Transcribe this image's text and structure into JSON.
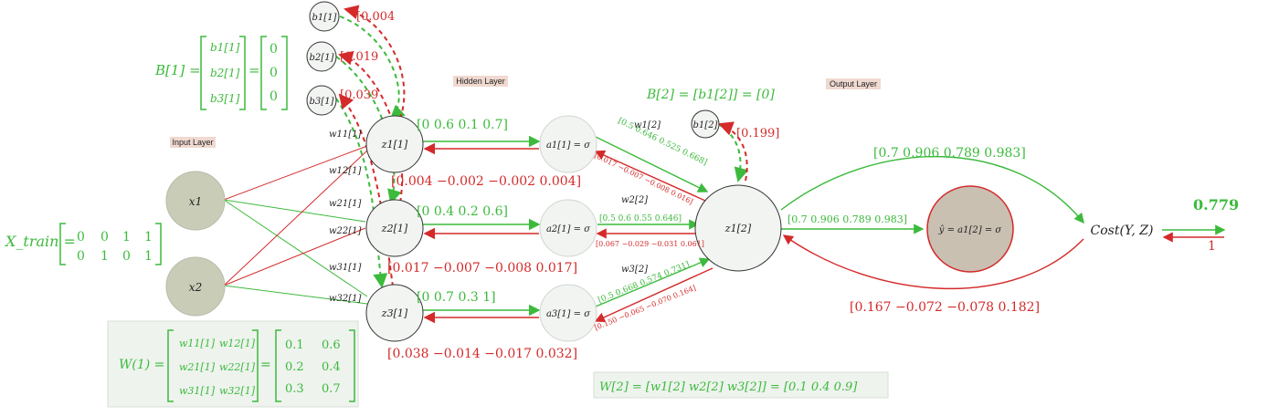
{
  "layers": {
    "input": "Input Layer",
    "hidden": "Hidden Layer",
    "output": "Output Layer"
  },
  "nodes": {
    "x1": "x1",
    "x2": "x2",
    "z1": "z1[1]",
    "z2": "z2[1]",
    "z3": "z3[1]",
    "a1": "a1[1] = σ",
    "a2": "a2[1] = σ",
    "a3": "a3[1] = σ",
    "b1": "b1[1]",
    "b2": "b2[1]",
    "b3": "b3[1]",
    "bout": "b1[2]",
    "zout": "z1[2]",
    "yhat": "ŷ = a1[2] = σ",
    "cost": "Cost(Y, Z)"
  },
  "xtrain": {
    "label": "X_train =",
    "rows": [
      [
        "0",
        "0",
        "1",
        "1"
      ],
      [
        "0",
        "1",
        "0",
        "1"
      ]
    ]
  },
  "B1": {
    "label": "B[1] =",
    "symbols": [
      "b1[1]",
      "b2[1]",
      "b3[1]"
    ],
    "values": [
      "0",
      "0",
      "0"
    ]
  },
  "B2": {
    "label": "B[2] = [b1[2]] = [0]"
  },
  "W1": {
    "label": "W(1) =",
    "symbols": [
      [
        "w11[1]",
        "w12[1]"
      ],
      [
        "w21[1]",
        "w22[1]"
      ],
      [
        "w31[1]",
        "w32[1]"
      ]
    ],
    "values": [
      [
        "0.1",
        "0.6"
      ],
      [
        "0.2",
        "0.4"
      ],
      [
        "0.3",
        "0.7"
      ]
    ]
  },
  "W2": {
    "label": "W[2] = [w1[2]   w2[2]   w3[2]] = [0.1   0.4   0.9]"
  },
  "weights_in": [
    "w11[1]",
    "w12[1]",
    "w21[1]",
    "w22[1]",
    "w31[1]",
    "w32[1]"
  ],
  "weights_out": [
    "w1[2]",
    "w2[2]",
    "w3[2]"
  ],
  "bias_grads": [
    "[0.004",
    "[0.019",
    "[0.039",
    "[0.199]"
  ],
  "z_forward": [
    "[0    0.6    0.1    0.7]",
    "[0    0.4    0.2    0.6]",
    "[0    0.7    0.3    1]"
  ],
  "z_backward": [
    "[0.004    −0.002    −0.002    0.004]",
    "[0.017    −0.007    −0.008    0.017]",
    "[0.038    −0.014    −0.017    0.032]"
  ],
  "a_forward": [
    "[0.5   0.646   0.525   0.668]",
    "[0.5   0.6   0.55   0.646]",
    "[0.5   0.668   0.574   0.731]"
  ],
  "a_backward": [
    "[0.017   −0.007   −0.008   0.016]",
    "[0.067   −0.029   −0.031   0.061]",
    "[0.150   −0.065   −0.070   0.164]"
  ],
  "out_forward": "[0.7   0.906   0.789   0.983]",
  "out_top": "[0.7    0.906    0.789    0.983]",
  "out_backward": "[0.167    −0.072    −0.078    0.182]",
  "cost_value": "0.779",
  "cost_grad": "1",
  "colors": {
    "forward": "#3cba3c",
    "backward": "#d42a2a",
    "node": "#f2f4f2",
    "input_node": "#c9cdb8",
    "yhat_node": "#c9c0b2"
  }
}
